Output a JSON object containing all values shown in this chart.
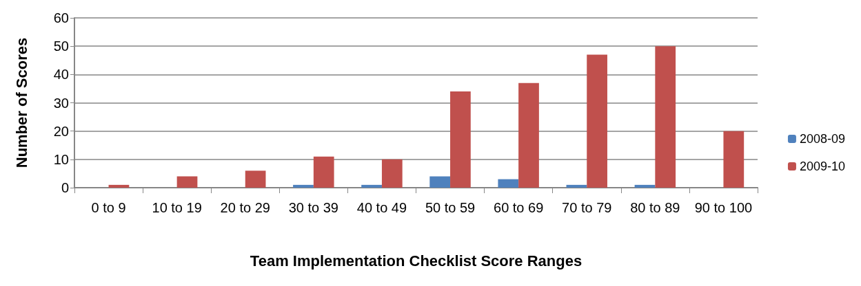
{
  "chart_data": {
    "type": "bar",
    "xlabel": "Team Implementation Checklist Score Ranges",
    "ylabel": "Number of Scores",
    "categories": [
      "0 to 9",
      "10 to 19",
      "20 to 29",
      "30 to 39",
      "40 to 49",
      "50 to 59",
      "60 to 69",
      "70 to 79",
      "80 to 89",
      "90 to 100"
    ],
    "series": [
      {
        "name": "2008-09",
        "color": "#4f81bd",
        "values": [
          0,
          0,
          0,
          1,
          1,
          4,
          3,
          1,
          1,
          0
        ]
      },
      {
        "name": "2009-10",
        "color": "#c0504d",
        "values": [
          1,
          4,
          6,
          11,
          10,
          34,
          37,
          47,
          50,
          20
        ]
      }
    ],
    "ylim": [
      0,
      60
    ],
    "yticks": [
      0,
      10,
      20,
      30,
      40,
      50,
      60
    ],
    "grid": "y",
    "legend": "right"
  }
}
